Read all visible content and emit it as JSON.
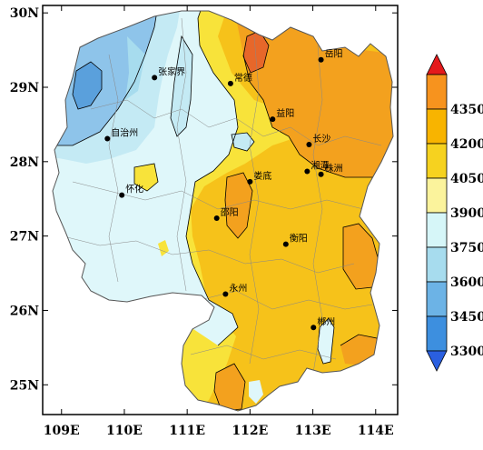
{
  "axes": {
    "x_ticks": [
      {
        "value": 109,
        "label": "109E"
      },
      {
        "value": 110,
        "label": "110E"
      },
      {
        "value": 111,
        "label": "111E"
      },
      {
        "value": 112,
        "label": "112E"
      },
      {
        "value": 113,
        "label": "113E"
      },
      {
        "value": 114,
        "label": "114E"
      }
    ],
    "y_ticks": [
      {
        "value": 30,
        "label": "30N"
      },
      {
        "value": 29,
        "label": "29N"
      },
      {
        "value": 28,
        "label": "28N"
      },
      {
        "value": 27,
        "label": "27N"
      },
      {
        "value": 26,
        "label": "26N"
      },
      {
        "value": 25,
        "label": "25N"
      }
    ],
    "lon_range": [
      108.7,
      114.35
    ],
    "lat_range": [
      24.6,
      30.1
    ]
  },
  "cities": [
    {
      "name": "张家界",
      "lon": 110.48,
      "lat": 29.13
    },
    {
      "name": "常德",
      "lon": 111.69,
      "lat": 29.05
    },
    {
      "name": "岳阳",
      "lon": 113.13,
      "lat": 29.37
    },
    {
      "name": "自治州",
      "lon": 109.73,
      "lat": 28.31
    },
    {
      "name": "益阳",
      "lon": 112.36,
      "lat": 28.57
    },
    {
      "name": "长沙",
      "lon": 112.94,
      "lat": 28.23
    },
    {
      "name": "湘潭",
      "lon": 112.91,
      "lat": 27.87
    },
    {
      "name": "株洲",
      "lon": 113.13,
      "lat": 27.83
    },
    {
      "name": "怀化",
      "lon": 109.96,
      "lat": 27.55
    },
    {
      "name": "娄底",
      "lon": 112.0,
      "lat": 27.73
    },
    {
      "name": "邵阳",
      "lon": 111.47,
      "lat": 27.24
    },
    {
      "name": "衡阳",
      "lon": 112.57,
      "lat": 26.89
    },
    {
      "name": "永州",
      "lon": 111.61,
      "lat": 26.22
    },
    {
      "name": "郴州",
      "lon": 113.01,
      "lat": 25.77
    }
  ],
  "colorbar": {
    "labels": [
      "4350",
      "4200",
      "4050",
      "3900",
      "3750",
      "3600",
      "3450",
      "3300"
    ],
    "colors": [
      "#e41a1c",
      "#f7931e",
      "#f8b400",
      "#f6d21f",
      "#fbf39c",
      "#d6f6f8",
      "#a7dcee",
      "#6cb3e6",
      "#3d8fdf",
      "#2a5fe0"
    ]
  },
  "map_colors": {
    "deep_blue": "#5aa0dc",
    "mid_blue": "#8ec4ea",
    "light_blue": "#c4eaf4",
    "pale_cyan": "#dff7fa",
    "yellow": "#f8e33a",
    "gold": "#f6c21a",
    "orange": "#f3a11e",
    "red_orange": "#e7672a"
  }
}
